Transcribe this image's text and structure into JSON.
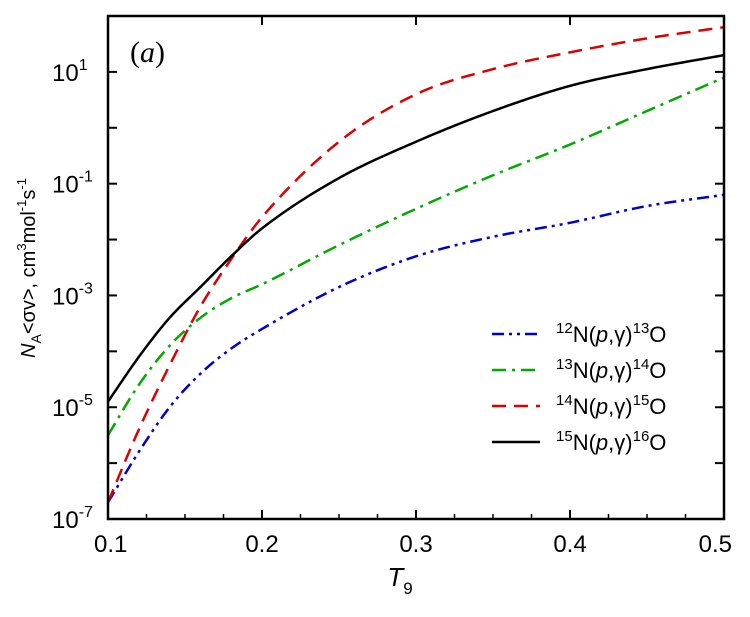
{
  "chart_data": {
    "type": "line",
    "panel_label": "a",
    "xlabel": "T",
    "xlabel_sub": "9",
    "ylabel": {
      "parts": [
        "N",
        "A",
        "<σv>, cm",
        "3",
        "mol",
        "-1",
        "s",
        "-1"
      ]
    },
    "xlim": [
      0.1,
      0.5
    ],
    "ylim_log10": [
      -7,
      2
    ],
    "x_ticks": [
      0.1,
      0.2,
      0.3,
      0.4,
      0.5
    ],
    "x_tick_labels": [
      "0.1",
      "0.2",
      "0.3",
      "0.4",
      "0.5"
    ],
    "y_ticks_log10": [
      -7,
      -5,
      -3,
      -1,
      1
    ],
    "y_tick_bases": [
      "10",
      "10",
      "10",
      "10",
      "10"
    ],
    "y_tick_exps": [
      "-7",
      "-5",
      "-3",
      "-1",
      "1"
    ],
    "legend_position": "lower-right",
    "x": [
      0.1,
      0.12,
      0.14,
      0.16,
      0.18,
      0.2,
      0.25,
      0.3,
      0.35,
      0.4,
      0.45,
      0.5
    ],
    "series": [
      {
        "name": "12N(p,γ)13O",
        "legend": {
          "pre_sup": "12",
          "base": "N(",
          "italic": "p",
          "mid": ",γ)",
          "post_sup": "13",
          "tail": "O"
        },
        "color": "#0000cc",
        "style": "dash-dot-dot",
        "log10_values": [
          -6.7,
          -5.8,
          -5.0,
          -4.4,
          -3.95,
          -3.6,
          -2.85,
          -2.3,
          -1.95,
          -1.7,
          -1.4,
          -1.2
        ]
      },
      {
        "name": "13N(p,γ)14O",
        "legend": {
          "pre_sup": "13",
          "base": "N(",
          "italic": "p",
          "mid": ",γ)",
          "post_sup": "14",
          "tail": "O"
        },
        "color": "#00aa00",
        "style": "dash-dot",
        "log10_values": [
          -5.5,
          -4.6,
          -3.9,
          -3.4,
          -3.05,
          -2.8,
          -2.1,
          -1.45,
          -0.85,
          -0.3,
          0.3,
          0.9
        ]
      },
      {
        "name": "14N(p,γ)15O",
        "legend": {
          "pre_sup": "14",
          "base": "N(",
          "italic": "p",
          "mid": ",γ)",
          "post_sup": "15",
          "tail": "O"
        },
        "color": "#dd0000",
        "style": "dashed",
        "log10_values": [
          -6.7,
          -5.4,
          -4.25,
          -3.2,
          -2.35,
          -1.6,
          -0.25,
          0.6,
          1.05,
          1.35,
          1.6,
          1.8
        ]
      },
      {
        "name": "15N(p,γ)16O",
        "legend": {
          "pre_sup": "15",
          "base": "N(",
          "italic": "p",
          "mid": ",γ)",
          "post_sup": "16",
          "tail": "O"
        },
        "color": "#000000",
        "style": "solid",
        "log10_values": [
          -4.9,
          -4.1,
          -3.4,
          -2.85,
          -2.3,
          -1.8,
          -0.9,
          -0.25,
          0.3,
          0.75,
          1.05,
          1.3
        ]
      }
    ]
  }
}
